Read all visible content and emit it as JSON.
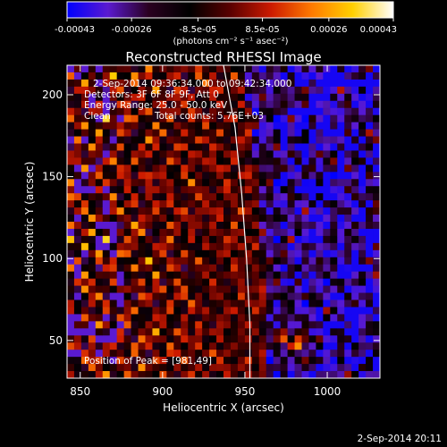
{
  "colorbar": {
    "tick_labels": [
      "-0.00043",
      "-0.00026",
      "-8.5e-05",
      "8.5e-05",
      "0.00026",
      "0.00043"
    ],
    "ticks": [
      -0.00043,
      -0.00026,
      -8.5e-05,
      8.5e-05,
      0.00026,
      0.00043
    ],
    "range": [
      -0.00043,
      0.00043
    ],
    "unit_label": "(photons cm⁻² s⁻¹ asec⁻²)",
    "colors": [
      "#0000ff",
      "#5a1ad0",
      "#2a0020",
      "#000000",
      "#5a0000",
      "#cc1a00",
      "#ff7a00",
      "#ffd000",
      "#ffffff"
    ]
  },
  "chart_data": {
    "type": "heatmap",
    "title": "Reconstructed RHESSI Image",
    "xlabel": "Heliocentric X (arcsec)",
    "ylabel": "Heliocentric Y (arcsec)",
    "xlim": [
      842,
      1032
    ],
    "ylim": [
      27,
      218
    ],
    "x_ticks": [
      850,
      900,
      950,
      1000
    ],
    "y_ticks": [
      50,
      100,
      150,
      200
    ],
    "x_tick_labels": [
      "850",
      "900",
      "950",
      "1000"
    ],
    "y_tick_labels": [
      "50",
      "100",
      "150",
      "200"
    ],
    "peak": [
      981,
      49
    ],
    "limb_points": [
      [
        937,
        218
      ],
      [
        944,
        180
      ],
      [
        948,
        140
      ],
      [
        951,
        100
      ],
      [
        953,
        60
      ],
      [
        953,
        27
      ]
    ],
    "annotations": [
      "2-Sep-2014 09:36:34.000 to 09:42:34.000",
      "Detectors: 3F 6F 8F 9F, Att 0",
      "Energy Range: 25.0 - 50.0 keV",
      "Clean",
      "Total counts: 5.76E+03"
    ],
    "peak_label": "Position of Peak = [981,49]"
  },
  "footer": {
    "date": "2-Sep-2014 20:11"
  }
}
